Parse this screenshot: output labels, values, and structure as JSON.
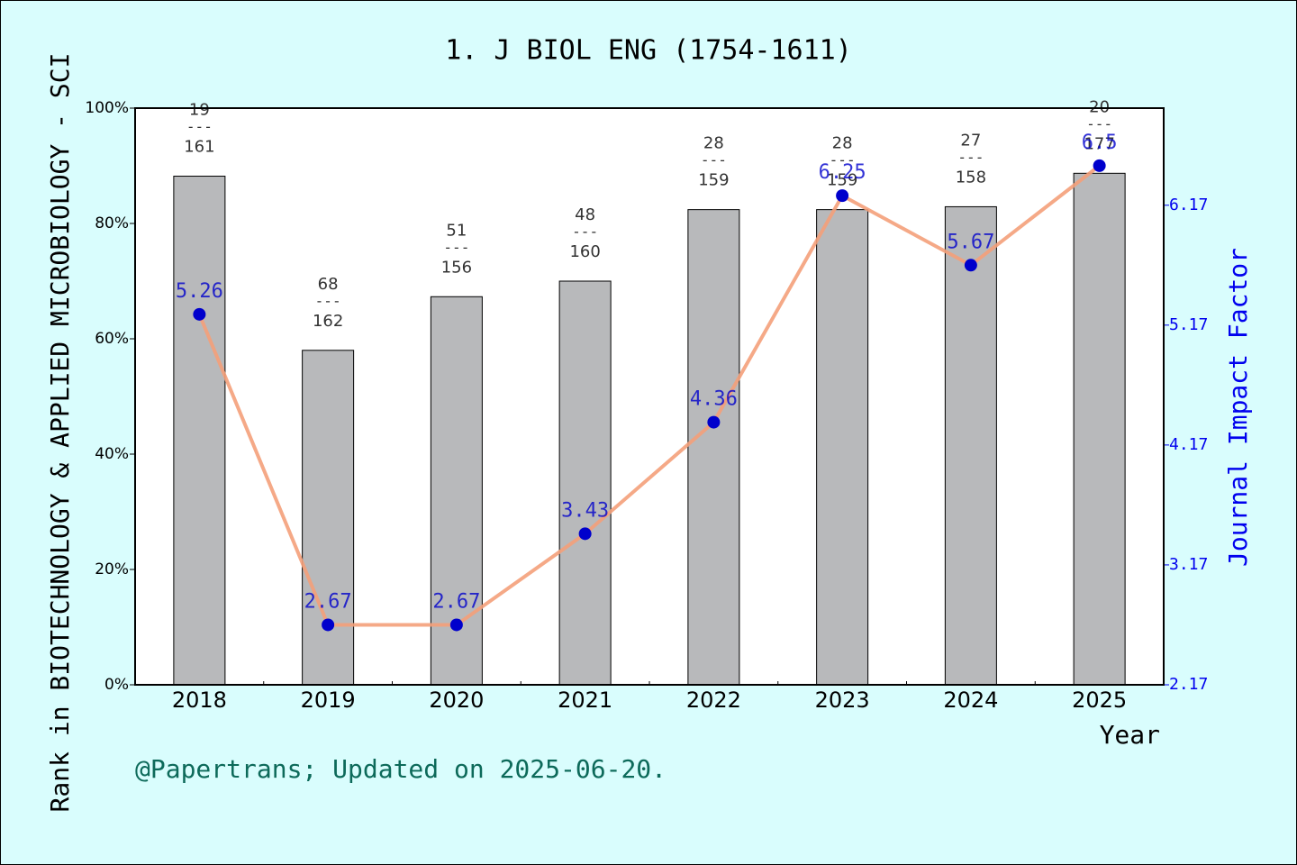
{
  "chart_data": {
    "type": "bar_line",
    "title": "1. J BIOL ENG (1754-1611)",
    "y_label": "Rank in BIOTECHNOLOGY & APPLIED MICROBIOLOGY - SCI",
    "y2_label": "Journal Impact Factor",
    "x_label": "Year",
    "footer": "@Papertrans; Updated on 2025-06-20.",
    "categories": [
      "2018",
      "2019",
      "2020",
      "2021",
      "2022",
      "2023",
      "2024",
      "2025"
    ],
    "series": [
      {
        "type": "bar",
        "color": "#b8b9bb",
        "values": [
          88.2,
          58,
          67.3,
          70,
          82.4,
          82.4,
          82.9,
          88.7
        ]
      },
      {
        "type": "line",
        "axis": "y2",
        "color": "#f4a07a",
        "marker_color": "#0000cc",
        "values": [
          5.26,
          2.67,
          2.67,
          3.43,
          4.36,
          6.25,
          5.67,
          6.5
        ]
      }
    ],
    "ranks": [
      19,
      68,
      51,
      48,
      28,
      28,
      27,
      20
    ],
    "rank_separator": "---",
    "totals": [
      161,
      162,
      156,
      160,
      159,
      159,
      158,
      177
    ],
    "ylim": [
      0,
      100
    ],
    "yticks": [
      {
        "value": 0,
        "label": "0%"
      },
      {
        "value": 20,
        "label": "20%"
      },
      {
        "value": 40,
        "label": "40%"
      },
      {
        "value": 60,
        "label": "60%"
      },
      {
        "value": 80,
        "label": "80%"
      },
      {
        "value": 100,
        "label": "100%"
      }
    ],
    "y2lim": [
      2.17,
      6.98
    ],
    "y2ticks": [
      2.17,
      3.17,
      4.17,
      5.17,
      6.17
    ]
  }
}
